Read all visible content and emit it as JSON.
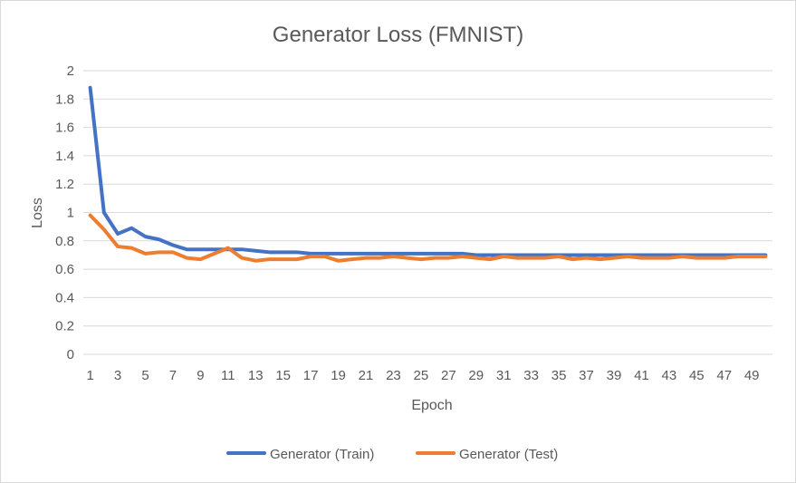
{
  "chart_data": {
    "type": "line",
    "title": "Generator Loss (FMNIST)",
    "xlabel": "Epoch",
    "ylabel": "Loss",
    "ylim": [
      0,
      2
    ],
    "yticks": [
      0,
      0.2,
      0.4,
      0.6,
      0.8,
      1,
      1.2,
      1.4,
      1.6,
      1.8,
      2
    ],
    "ytick_labels": [
      "0",
      "0.2",
      "0.4",
      "0.6",
      "0.8",
      "1",
      "1.2",
      "1.4",
      "1.6",
      "1.8",
      "2"
    ],
    "x": [
      1,
      2,
      3,
      4,
      5,
      6,
      7,
      8,
      9,
      10,
      11,
      12,
      13,
      14,
      15,
      16,
      17,
      18,
      19,
      20,
      21,
      22,
      23,
      24,
      25,
      26,
      27,
      28,
      29,
      30,
      31,
      32,
      33,
      34,
      35,
      36,
      37,
      38,
      39,
      40,
      41,
      42,
      43,
      44,
      45,
      46,
      47,
      48,
      49,
      50
    ],
    "xtick_labels": [
      "1",
      "3",
      "5",
      "7",
      "9",
      "11",
      "13",
      "15",
      "17",
      "19",
      "21",
      "23",
      "25",
      "27",
      "29",
      "31",
      "33",
      "35",
      "37",
      "39",
      "41",
      "43",
      "45",
      "47",
      "49"
    ],
    "grid": "horizontal",
    "legend_position": "bottom",
    "series": [
      {
        "name": "Generator (Train)",
        "color": "#4472c4",
        "values": [
          1.88,
          1.0,
          0.85,
          0.89,
          0.83,
          0.81,
          0.77,
          0.74,
          0.74,
          0.74,
          0.74,
          0.74,
          0.73,
          0.72,
          0.72,
          0.72,
          0.71,
          0.71,
          0.71,
          0.71,
          0.71,
          0.71,
          0.71,
          0.71,
          0.71,
          0.71,
          0.71,
          0.71,
          0.7,
          0.7,
          0.7,
          0.7,
          0.7,
          0.7,
          0.7,
          0.7,
          0.7,
          0.7,
          0.7,
          0.7,
          0.7,
          0.7,
          0.7,
          0.7,
          0.7,
          0.7,
          0.7,
          0.7,
          0.7,
          0.7
        ]
      },
      {
        "name": "Generator (Test)",
        "color": "#ed7d31",
        "values": [
          0.98,
          0.88,
          0.76,
          0.75,
          0.71,
          0.72,
          0.72,
          0.68,
          0.67,
          0.71,
          0.75,
          0.68,
          0.66,
          0.67,
          0.67,
          0.67,
          0.69,
          0.69,
          0.66,
          0.67,
          0.68,
          0.68,
          0.69,
          0.68,
          0.67,
          0.68,
          0.68,
          0.69,
          0.68,
          0.67,
          0.69,
          0.68,
          0.68,
          0.68,
          0.69,
          0.67,
          0.68,
          0.67,
          0.68,
          0.69,
          0.68,
          0.68,
          0.68,
          0.69,
          0.68,
          0.68,
          0.68,
          0.69,
          0.69,
          0.69
        ]
      }
    ]
  }
}
